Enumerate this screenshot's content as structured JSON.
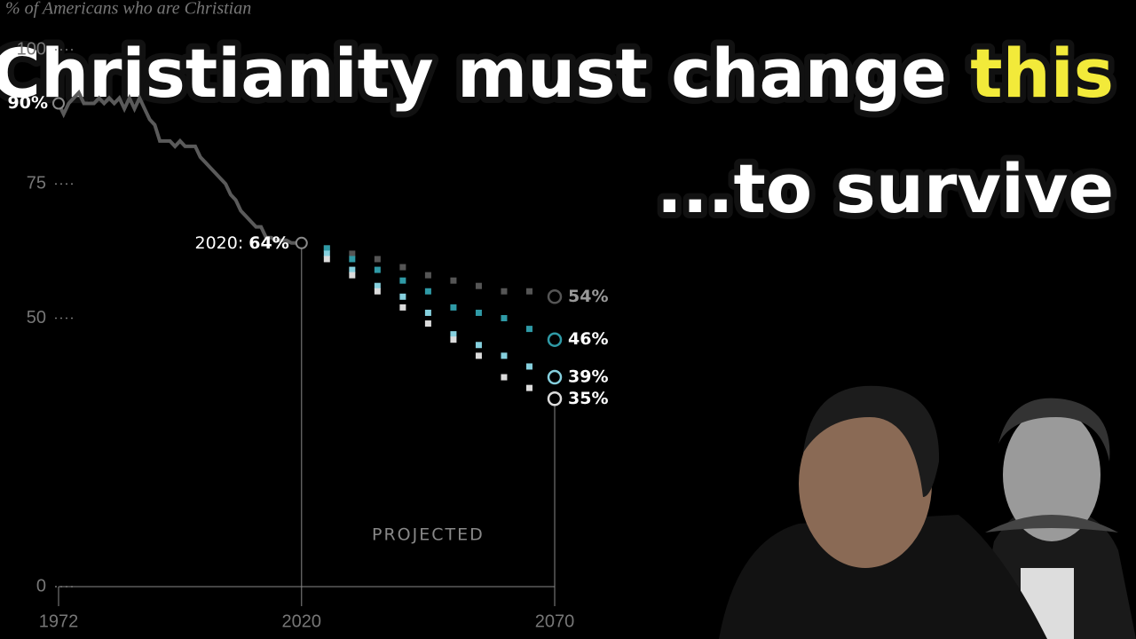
{
  "headline": {
    "part1": "Christianity must change",
    "highlight": "this",
    "line2": "...to survive"
  },
  "chart_data": {
    "type": "line",
    "ylabel": "% of Americans who are Christian",
    "xlim": [
      1972,
      2070
    ],
    "xticks": [
      1972,
      2020,
      2070
    ],
    "ylim": [
      0,
      100
    ],
    "yticks": [
      0,
      50,
      75,
      100
    ],
    "annotation": "PROJECTED",
    "history": {
      "color": "#5a5a5a",
      "x": [
        1972,
        1973,
        1974,
        1975,
        1976,
        1977,
        1978,
        1979,
        1980,
        1981,
        1982,
        1983,
        1984,
        1985,
        1986,
        1987,
        1988,
        1989,
        1990,
        1991,
        1992,
        1993,
        1994,
        1995,
        1996,
        1997,
        1998,
        1999,
        2000,
        2001,
        2002,
        2003,
        2004,
        2005,
        2006,
        2007,
        2008,
        2009,
        2010,
        2011,
        2012,
        2013,
        2014,
        2015,
        2016,
        2017,
        2018,
        2019,
        2020
      ],
      "values": [
        90,
        88,
        90,
        91,
        92,
        90,
        90,
        90,
        91,
        90,
        91,
        90,
        91,
        89,
        91,
        89,
        91,
        89,
        87,
        86,
        83,
        83,
        83,
        82,
        83,
        82,
        82,
        82,
        80,
        79,
        78,
        77,
        76,
        75,
        73,
        72,
        70,
        69,
        68,
        67,
        67,
        65,
        65,
        64.5,
        64.5,
        64.5,
        64,
        64,
        64
      ],
      "first_label": "90%",
      "last_prefix": "2020:",
      "last_label": "64%"
    },
    "x": [
      2025,
      2030,
      2035,
      2040,
      2045,
      2050,
      2055,
      2060,
      2065,
      2070
    ],
    "series": [
      {
        "color": "#555555",
        "values": [
          63,
          62,
          61,
          59.5,
          58,
          57,
          56,
          55,
          55,
          54
        ],
        "end_label": "54%"
      },
      {
        "color": "#2f9aa6",
        "values": [
          63,
          61,
          59,
          57,
          55,
          52,
          51,
          50,
          48,
          46
        ],
        "end_label": "46%"
      },
      {
        "color": "#86d0de",
        "values": [
          62,
          59,
          56,
          54,
          51,
          47,
          45,
          43,
          41,
          39
        ],
        "end_label": "39%"
      },
      {
        "color": "#dcdcdc",
        "values": [
          61,
          58,
          55,
          52,
          49,
          46,
          43,
          39,
          37,
          35
        ],
        "end_label": "35%"
      }
    ]
  }
}
